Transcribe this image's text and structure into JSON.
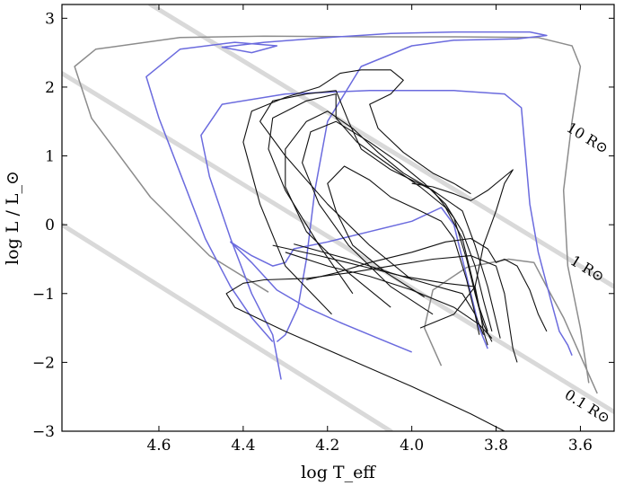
{
  "chart_data": {
    "type": "line",
    "xlabel": "log T_eff",
    "ylabel": "log L / L_⊙",
    "x_reversed": true,
    "xlim": [
      4.83,
      3.52
    ],
    "ylim": [
      -3,
      3.2
    ],
    "x_ticks": [
      4.6,
      4.4,
      4.2,
      4.0,
      3.8,
      3.6
    ],
    "x_tick_labels": [
      "4.6",
      "4.4",
      "4.2",
      "4.0",
      "3.8",
      "3.6"
    ],
    "y_ticks": [
      3,
      2,
      1,
      0,
      -1,
      -2,
      -3
    ],
    "y_tick_labels": [
      "3",
      "2",
      "1",
      "0",
      "−1",
      "−2",
      "−3"
    ],
    "grid": false,
    "colors": {
      "black": "#111111",
      "blue": "#6b6bde",
      "gray": "#8c8c8c",
      "iso": "#d9d9d9"
    },
    "isoradius_lines": [
      {
        "label": "10 R⊙",
        "points": [
          [
            4.62,
            3.2
          ],
          [
            3.52,
            -0.9
          ]
        ],
        "label_at": [
          3.6,
          1.2
        ]
      },
      {
        "label": "1 R⊙",
        "points": [
          [
            4.83,
            2.2
          ],
          [
            3.52,
            -2.72
          ]
        ],
        "label_at": [
          3.6,
          -0.7
        ]
      },
      {
        "label": "0.1 R⊙",
        "points": [
          [
            4.83,
            0.0
          ],
          [
            4.05,
            -3.0
          ]
        ],
        "label_at": [
          3.6,
          -2.7
        ]
      }
    ],
    "series": [
      {
        "color": "gray",
        "points": [
          [
            4.34,
            -0.98
          ],
          [
            4.48,
            -0.45
          ],
          [
            4.62,
            0.4
          ],
          [
            4.76,
            1.55
          ],
          [
            4.8,
            2.3
          ],
          [
            4.75,
            2.55
          ],
          [
            4.55,
            2.72
          ],
          [
            4.35,
            2.74
          ],
          [
            4.1,
            2.73
          ],
          [
            3.9,
            2.73
          ],
          [
            3.7,
            2.72
          ],
          [
            3.62,
            2.6
          ],
          [
            3.6,
            2.3
          ],
          [
            3.62,
            1.5
          ],
          [
            3.64,
            0.5
          ],
          [
            3.63,
            -0.6
          ],
          [
            3.6,
            -1.5
          ],
          [
            3.58,
            -2.3
          ]
        ]
      },
      {
        "color": "gray",
        "points": [
          [
            3.93,
            -2.05
          ],
          [
            3.97,
            -1.5
          ],
          [
            3.95,
            -0.95
          ],
          [
            3.87,
            -0.62
          ],
          [
            3.77,
            -0.5
          ],
          [
            3.71,
            -0.55
          ],
          [
            3.68,
            -0.9
          ],
          [
            3.64,
            -1.35
          ],
          [
            3.6,
            -1.9
          ],
          [
            3.56,
            -2.45
          ]
        ]
      },
      {
        "color": "blue",
        "points": [
          [
            4.33,
            -1.7
          ],
          [
            4.38,
            -1.35
          ],
          [
            4.43,
            -0.9
          ],
          [
            4.49,
            -0.2
          ],
          [
            4.54,
            0.6
          ],
          [
            4.6,
            1.55
          ],
          [
            4.63,
            2.15
          ],
          [
            4.55,
            2.55
          ],
          [
            4.42,
            2.65
          ],
          [
            4.32,
            2.6
          ],
          [
            4.38,
            2.5
          ],
          [
            4.45,
            2.58
          ],
          [
            4.35,
            2.65
          ],
          [
            4.2,
            2.72
          ],
          [
            4.05,
            2.78
          ],
          [
            3.9,
            2.8
          ],
          [
            3.72,
            2.8
          ],
          [
            3.68,
            2.75
          ],
          [
            3.75,
            2.7
          ],
          [
            3.9,
            2.68
          ],
          [
            4.0,
            2.6
          ],
          [
            4.12,
            2.3
          ],
          [
            4.2,
            1.5
          ],
          [
            4.23,
            0.5
          ],
          [
            4.25,
            -0.5
          ],
          [
            4.27,
            -1.2
          ],
          [
            4.3,
            -1.6
          ],
          [
            4.32,
            -1.7
          ]
        ]
      },
      {
        "color": "blue",
        "points": [
          [
            4.31,
            -2.25
          ],
          [
            4.33,
            -1.6
          ],
          [
            4.38,
            -1.0
          ],
          [
            4.43,
            -0.2
          ],
          [
            4.48,
            0.7
          ],
          [
            4.5,
            1.3
          ],
          [
            4.45,
            1.75
          ],
          [
            4.3,
            1.9
          ],
          [
            4.1,
            1.95
          ],
          [
            3.9,
            1.95
          ],
          [
            3.78,
            1.9
          ],
          [
            3.74,
            1.7
          ],
          [
            3.73,
            1.0
          ],
          [
            3.72,
            0.3
          ],
          [
            3.7,
            -0.4
          ],
          [
            3.67,
            -1.1
          ],
          [
            3.65,
            -1.55
          ],
          [
            3.63,
            -1.75
          ],
          [
            3.62,
            -1.9
          ]
        ]
      },
      {
        "color": "blue",
        "points": [
          [
            4.0,
            -1.85
          ],
          [
            4.08,
            -1.65
          ],
          [
            4.17,
            -1.42
          ],
          [
            4.25,
            -1.2
          ],
          [
            4.32,
            -0.95
          ],
          [
            4.38,
            -0.55
          ],
          [
            4.43,
            -0.25
          ],
          [
            4.38,
            -0.45
          ],
          [
            4.33,
            -0.6
          ],
          [
            4.3,
            -0.55
          ],
          [
            4.28,
            -0.35
          ],
          [
            4.2,
            -0.25
          ],
          [
            4.1,
            -0.1
          ],
          [
            4.0,
            0.05
          ],
          [
            3.93,
            0.25
          ],
          [
            3.9,
            0.0
          ],
          [
            3.88,
            -0.5
          ],
          [
            3.86,
            -1.0
          ],
          [
            3.84,
            -1.5
          ],
          [
            3.82,
            -1.8
          ]
        ]
      },
      {
        "color": "black",
        "points": [
          [
            3.78,
            -3.0
          ],
          [
            3.86,
            -2.75
          ],
          [
            4.0,
            -2.35
          ],
          [
            4.15,
            -1.95
          ],
          [
            4.3,
            -1.55
          ],
          [
            4.42,
            -1.2
          ],
          [
            4.44,
            -1.0
          ],
          [
            4.4,
            -0.85
          ],
          [
            4.35,
            -0.8
          ],
          [
            4.25,
            -0.78
          ],
          [
            4.15,
            -0.7
          ],
          [
            4.05,
            -0.6
          ],
          [
            3.95,
            -0.5
          ],
          [
            3.86,
            -0.45
          ],
          [
            3.8,
            -0.6
          ],
          [
            3.78,
            -1.0
          ],
          [
            3.77,
            -1.4
          ],
          [
            3.76,
            -1.8
          ],
          [
            3.75,
            -2.0
          ]
        ]
      },
      {
        "color": "black",
        "points": [
          [
            4.19,
            -1.3
          ],
          [
            4.3,
            -0.6
          ],
          [
            4.36,
            0.3
          ],
          [
            4.4,
            1.2
          ],
          [
            4.38,
            1.65
          ],
          [
            4.3,
            1.85
          ],
          [
            4.22,
            2.0
          ],
          [
            4.17,
            2.2
          ],
          [
            4.12,
            2.25
          ],
          [
            4.05,
            2.25
          ],
          [
            4.02,
            2.1
          ],
          [
            4.05,
            1.9
          ],
          [
            4.1,
            1.75
          ],
          [
            4.08,
            1.4
          ],
          [
            4.02,
            1.05
          ],
          [
            3.95,
            0.75
          ],
          [
            3.9,
            0.6
          ],
          [
            3.86,
            0.45
          ]
        ]
      },
      {
        "color": "black",
        "points": [
          [
            4.0,
            -0.8
          ],
          [
            4.1,
            -0.3
          ],
          [
            4.2,
            0.3
          ],
          [
            4.3,
            1.0
          ],
          [
            4.36,
            1.5
          ],
          [
            4.33,
            1.8
          ],
          [
            4.25,
            1.9
          ],
          [
            4.18,
            1.95
          ],
          [
            4.15,
            1.5
          ],
          [
            4.12,
            1.1
          ],
          [
            4.05,
            0.8
          ],
          [
            3.95,
            0.5
          ],
          [
            3.88,
            0.2
          ],
          [
            3.85,
            -0.3
          ],
          [
            3.82,
            -0.9
          ],
          [
            3.8,
            -1.4
          ],
          [
            3.79,
            -1.65
          ]
        ]
      },
      {
        "color": "black",
        "points": [
          [
            4.14,
            -1.0
          ],
          [
            4.22,
            -0.3
          ],
          [
            4.3,
            0.5
          ],
          [
            4.34,
            1.1
          ],
          [
            4.33,
            1.55
          ],
          [
            4.25,
            1.8
          ],
          [
            4.18,
            1.9
          ],
          [
            4.18,
            1.55
          ],
          [
            4.13,
            1.2
          ],
          [
            4.05,
            0.85
          ],
          [
            3.98,
            0.55
          ],
          [
            3.92,
            0.25
          ],
          [
            3.88,
            -0.2
          ],
          [
            3.86,
            -0.7
          ],
          [
            3.84,
            -1.2
          ],
          [
            3.82,
            -1.55
          ]
        ]
      },
      {
        "color": "black",
        "points": [
          [
            4.05,
            -1.2
          ],
          [
            4.15,
            -0.7
          ],
          [
            4.25,
            -0.1
          ],
          [
            4.3,
            0.55
          ],
          [
            4.3,
            1.1
          ],
          [
            4.25,
            1.5
          ],
          [
            4.2,
            1.65
          ],
          [
            4.14,
            1.4
          ],
          [
            4.08,
            1.05
          ],
          [
            4.02,
            0.75
          ],
          [
            3.95,
            0.5
          ],
          [
            3.9,
            0.1
          ],
          [
            3.87,
            -0.5
          ],
          [
            3.85,
            -1.0
          ],
          [
            3.83,
            -1.45
          ],
          [
            3.81,
            -1.7
          ]
        ]
      },
      {
        "color": "black",
        "points": [
          [
            3.95,
            -1.3
          ],
          [
            4.05,
            -0.9
          ],
          [
            4.15,
            -0.3
          ],
          [
            4.22,
            0.3
          ],
          [
            4.26,
            0.9
          ],
          [
            4.24,
            1.35
          ],
          [
            4.18,
            1.5
          ],
          [
            4.1,
            1.2
          ],
          [
            4.03,
            0.9
          ],
          [
            3.97,
            0.6
          ],
          [
            3.92,
            0.3
          ],
          [
            3.88,
            -0.1
          ],
          [
            3.85,
            -0.6
          ],
          [
            3.83,
            -1.1
          ],
          [
            3.81,
            -1.55
          ]
        ]
      },
      {
        "color": "black",
        "points": [
          [
            3.98,
            -1.5
          ],
          [
            3.9,
            -1.3
          ],
          [
            3.85,
            -0.9
          ],
          [
            3.83,
            -0.3
          ],
          [
            3.8,
            0.2
          ],
          [
            3.78,
            0.6
          ],
          [
            3.76,
            0.8
          ],
          [
            3.78,
            0.7
          ],
          [
            3.82,
            0.5
          ],
          [
            3.86,
            0.35
          ],
          [
            3.9,
            0.45
          ],
          [
            3.95,
            0.55
          ],
          [
            4.0,
            0.6
          ]
        ]
      },
      {
        "color": "black",
        "points": [
          [
            4.25,
            -0.8
          ],
          [
            4.18,
            -0.7
          ],
          [
            4.1,
            -0.55
          ],
          [
            4.0,
            -0.4
          ],
          [
            3.92,
            -0.25
          ],
          [
            3.86,
            -0.2
          ],
          [
            3.82,
            -0.35
          ],
          [
            3.8,
            -0.55
          ],
          [
            3.78,
            -0.5
          ],
          [
            3.75,
            -0.6
          ],
          [
            3.72,
            -0.95
          ],
          [
            3.7,
            -1.3
          ],
          [
            3.68,
            -1.55
          ]
        ]
      },
      {
        "color": "black",
        "points": [
          [
            3.97,
            -1.05
          ],
          [
            4.06,
            -0.7
          ],
          [
            4.14,
            -0.3
          ],
          [
            4.18,
            0.2
          ],
          [
            4.2,
            0.6
          ],
          [
            4.16,
            0.85
          ],
          [
            4.1,
            0.65
          ],
          [
            4.05,
            0.4
          ],
          [
            3.98,
            0.2
          ],
          [
            3.93,
            0.05
          ],
          [
            3.9,
            -0.2
          ],
          [
            3.87,
            -0.8
          ],
          [
            3.85,
            -1.3
          ],
          [
            3.83,
            -1.6
          ]
        ]
      },
      {
        "color": "black",
        "points": [
          [
            4.33,
            -0.3
          ],
          [
            4.22,
            -0.45
          ],
          [
            4.12,
            -0.6
          ],
          [
            4.02,
            -0.75
          ],
          [
            3.92,
            -0.85
          ],
          [
            3.85,
            -0.9
          ],
          [
            3.84,
            -1.2
          ],
          [
            3.83,
            -1.55
          ],
          [
            3.82,
            -1.75
          ]
        ]
      },
      {
        "color": "black",
        "points": [
          [
            4.28,
            -0.28
          ],
          [
            4.15,
            -0.5
          ],
          [
            4.05,
            -0.7
          ],
          [
            3.95,
            -0.88
          ],
          [
            3.88,
            -1.0
          ],
          [
            3.85,
            -1.3
          ],
          [
            3.84,
            -1.6
          ]
        ]
      },
      {
        "color": "black",
        "points": [
          [
            4.3,
            -0.4
          ],
          [
            4.2,
            -0.6
          ],
          [
            4.1,
            -0.75
          ],
          [
            4.0,
            -0.95
          ],
          [
            3.9,
            -1.2
          ],
          [
            3.84,
            -1.45
          ],
          [
            3.81,
            -1.65
          ]
        ]
      }
    ]
  }
}
